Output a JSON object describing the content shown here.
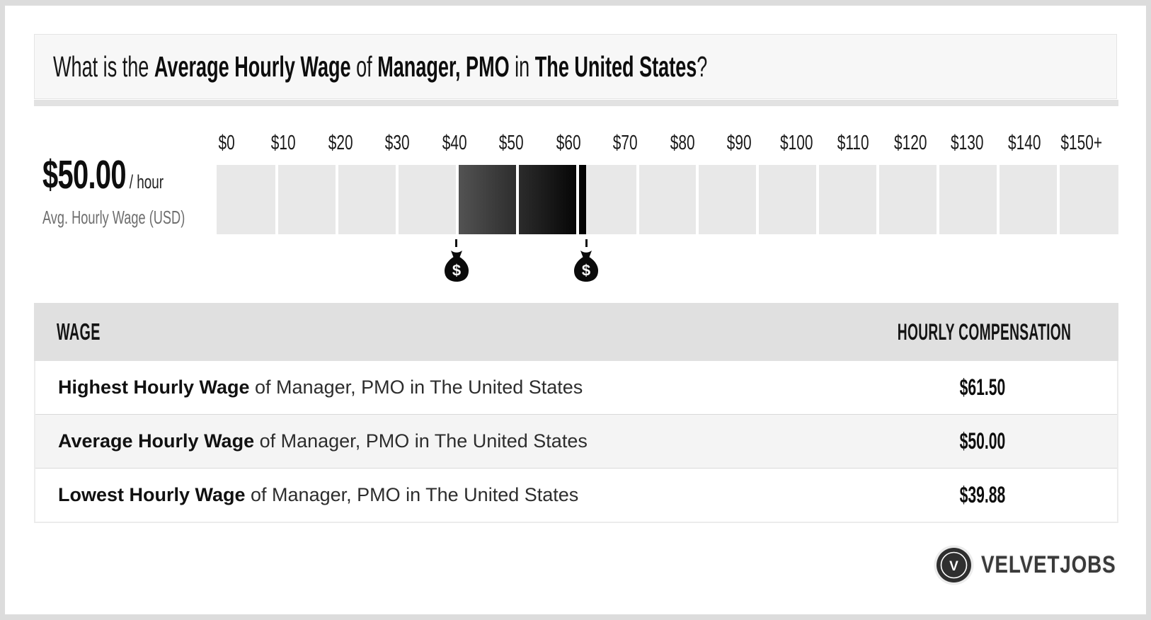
{
  "title": {
    "parts": [
      "What is the ",
      "Average Hourly Wage",
      " of ",
      "Manager, PMO",
      " in ",
      "The United States",
      "?"
    ]
  },
  "chart_data": {
    "type": "bar",
    "subtype": "horizontal-range-strip",
    "title": "Average Hourly Wage of Manager, PMO in The United States",
    "x_axis": {
      "min": 0,
      "max": 150,
      "step": 10,
      "tick_labels": [
        "$0",
        "$10",
        "$20",
        "$30",
        "$40",
        "$50",
        "$60",
        "$70",
        "$80",
        "$90",
        "$100",
        "$110",
        "$120",
        "$130",
        "$140",
        "$150+"
      ]
    },
    "highlight_range": {
      "low": 39.88,
      "high": 61.5,
      "unit": "USD/hour"
    },
    "markers": [
      {
        "name": "lowest-wage-marker",
        "value": 39.88
      },
      {
        "name": "highest-wage-marker",
        "value": 61.5
      }
    ],
    "stat": {
      "value": "$50.00",
      "unit": "/ hour",
      "caption": "Avg. Hourly Wage (USD)"
    },
    "colors": {
      "segment": "#e8e8e8",
      "highlight_start": "#545454",
      "highlight_end": "#000000",
      "marker": "#111111"
    },
    "grid": false,
    "legend": false
  },
  "table": {
    "headers": [
      "WAGE",
      "HOURLY COMPENSATION"
    ],
    "rows": [
      {
        "label_bold": "Highest Hourly Wage",
        "label_rest": " of Manager, PMO in The United States",
        "value": "$61.50"
      },
      {
        "label_bold": "Average Hourly Wage",
        "label_rest": " of Manager, PMO in The United States",
        "value": "$50.00"
      },
      {
        "label_bold": "Lowest Hourly Wage",
        "label_rest": " of Manager, PMO in The United States",
        "value": "$39.88"
      }
    ]
  },
  "logo": {
    "monogram": "V",
    "brand": "VELVETJOBS"
  }
}
